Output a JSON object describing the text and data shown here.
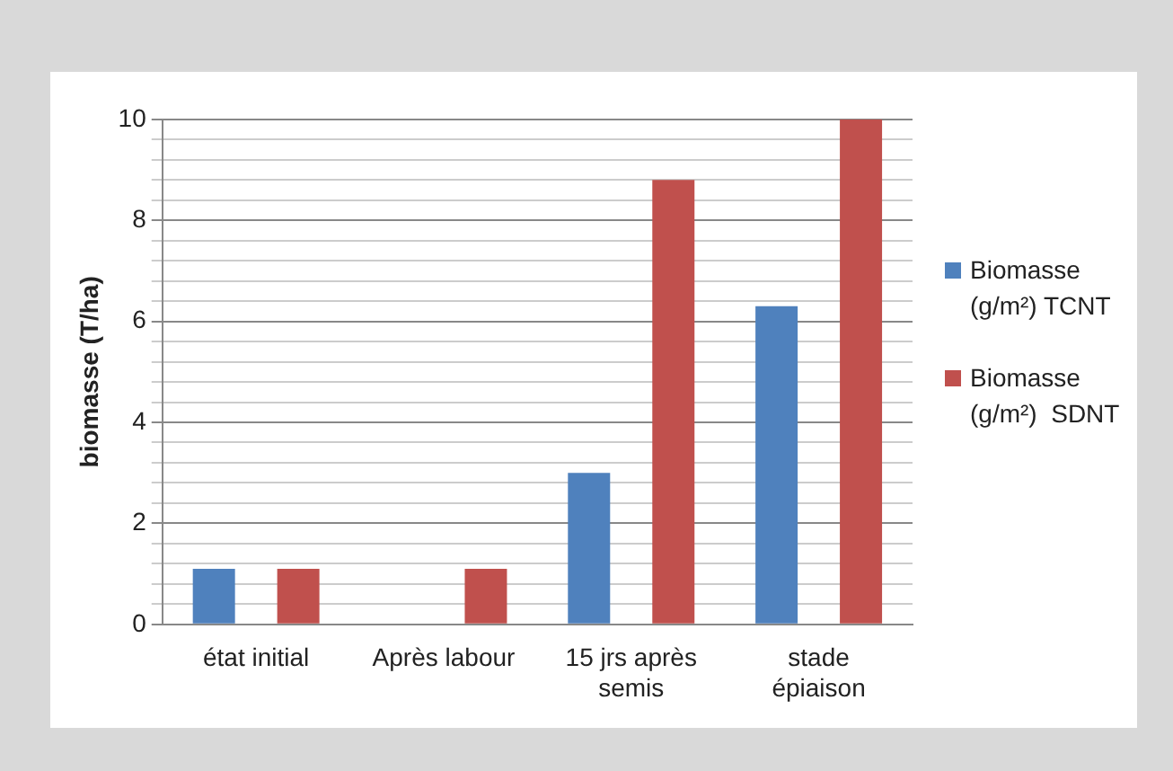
{
  "chart_data": {
    "type": "bar",
    "ylabel": "biomasse (T/ha)",
    "categories": [
      "état initial",
      "Après labour",
      "15 jrs après semis",
      "stade épiaison"
    ],
    "series": [
      {
        "name": "Biomasse (g/m²) TCNT",
        "color": "#4f81bd",
        "values": [
          1.1,
          0,
          3.0,
          6.3
        ]
      },
      {
        "name": "Biomasse (g/m²)  SDNT",
        "color": "#c0504d",
        "values": [
          1.1,
          1.1,
          8.8,
          10.0
        ]
      }
    ],
    "ylim": [
      0,
      10
    ],
    "yticks": [
      0,
      {
        "value": 0.4,
        "label": null
      },
      {
        "value": 0.8,
        "label": null
      },
      {
        "value": 1.2,
        "label": null
      },
      {
        "value": 1.6,
        "label": null
      },
      2,
      {
        "value": 2.4,
        "label": null
      },
      {
        "value": 2.8,
        "label": null
      },
      {
        "value": 3.2,
        "label": null
      },
      {
        "value": 3.6,
        "label": null
      },
      4,
      {
        "value": 4.4,
        "label": null
      },
      {
        "value": 4.8,
        "label": null
      },
      {
        "value": 5.2,
        "label": null
      },
      {
        "value": 5.6,
        "label": null
      },
      6,
      {
        "value": 6.4,
        "label": null
      },
      {
        "value": 6.8,
        "label": null
      },
      {
        "value": 7.2,
        "label": null
      },
      {
        "value": 7.6,
        "label": null
      },
      8,
      {
        "value": 8.4,
        "label": null
      },
      {
        "value": 8.8,
        "label": null
      },
      {
        "value": 9.2,
        "label": null
      },
      {
        "value": 9.6,
        "label": null
      },
      10
    ],
    "grid": "y",
    "legend": "right"
  }
}
